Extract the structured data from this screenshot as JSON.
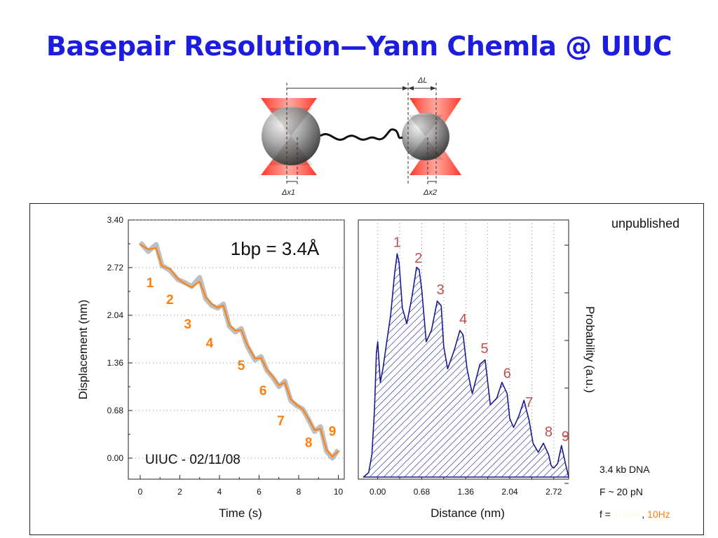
{
  "slide": {
    "title": "Basepair Resolution—Yann Chemla @ UIUC"
  },
  "diagram": {
    "delta_L": "ΔL",
    "delta_x1": "Δx1",
    "delta_x2": "Δx2"
  },
  "annotations": {
    "unpublished": "unpublished",
    "dna_length": "3.4 kb DNA",
    "force": "F ~ 20 pN",
    "freq_prefix": "f = ",
    "freq_100": "100Hz",
    "freq_sep": ", ",
    "freq_10": "10Hz"
  },
  "colors": {
    "title": "#1d1de0",
    "raw_trace": "#b8b8b8",
    "filtered_trace": "#ff7f0e",
    "step_labels_left": "#ff7f0e",
    "histogram": "#1a1a8c",
    "step_labels_right": "#c0504d"
  },
  "chart_data": [
    {
      "type": "line",
      "xlabel": "Time (s)",
      "ylabel": "Displacement (nm)",
      "xlim": [
        -0.6,
        10.3
      ],
      "ylim": [
        -0.3,
        3.4
      ],
      "xticks": [
        "0",
        "2",
        "4",
        "6",
        "8",
        "10"
      ],
      "yticks": [
        "0.00",
        "0.68",
        "1.36",
        "2.04",
        "2.72",
        "3.40"
      ],
      "grid": "dotted horizontal",
      "inset_text": "1bp = 3.4Å",
      "footer_text": "UIUC - 02/11/08",
      "series": [
        {
          "name": "100Hz",
          "x": [
            0,
            0.4,
            0.8,
            1.1,
            1.5,
            1.9,
            2.3,
            2.6,
            3.0,
            3.3,
            3.6,
            3.9,
            4.2,
            4.5,
            4.8,
            5.1,
            5.4,
            5.8,
            6.1,
            6.4,
            6.7,
            7.0,
            7.3,
            7.6,
            7.9,
            8.2,
            8.5,
            8.8,
            9.1,
            9.4,
            9.7,
            10.0
          ],
          "y": [
            3.08,
            2.95,
            3.05,
            2.75,
            2.68,
            2.55,
            2.5,
            2.45,
            2.58,
            2.28,
            2.18,
            2.14,
            2.2,
            1.88,
            1.8,
            1.85,
            1.6,
            1.4,
            1.45,
            1.25,
            1.15,
            1.02,
            1.1,
            0.82,
            0.75,
            0.7,
            0.55,
            0.38,
            0.45,
            0.1,
            0.0,
            0.12
          ]
        },
        {
          "name": "10Hz",
          "x": [
            0,
            0.4,
            0.8,
            1.1,
            1.5,
            1.9,
            2.3,
            2.6,
            3.0,
            3.3,
            3.6,
            3.9,
            4.2,
            4.5,
            4.8,
            5.1,
            5.4,
            5.8,
            6.1,
            6.4,
            6.7,
            7.0,
            7.3,
            7.6,
            7.9,
            8.2,
            8.5,
            8.8,
            9.1,
            9.4,
            9.7,
            10.0
          ],
          "y": [
            3.05,
            2.98,
            3.0,
            2.74,
            2.7,
            2.56,
            2.48,
            2.44,
            2.52,
            2.3,
            2.2,
            2.15,
            2.18,
            1.9,
            1.82,
            1.83,
            1.62,
            1.42,
            1.43,
            1.26,
            1.16,
            1.04,
            1.08,
            0.84,
            0.76,
            0.7,
            0.56,
            0.4,
            0.42,
            0.12,
            0.02,
            0.1
          ]
        }
      ],
      "step_labels": [
        {
          "label": "1",
          "x": 0.5,
          "y": 2.44
        },
        {
          "label": "2",
          "x": 1.5,
          "y": 2.2
        },
        {
          "label": "3",
          "x": 2.4,
          "y": 1.85
        },
        {
          "label": "4",
          "x": 3.5,
          "y": 1.58
        },
        {
          "label": "5",
          "x": 5.1,
          "y": 1.26
        },
        {
          "label": "6",
          "x": 6.2,
          "y": 0.9
        },
        {
          "label": "7",
          "x": 7.1,
          "y": 0.47
        },
        {
          "label": "8",
          "x": 8.5,
          "y": 0.16
        },
        {
          "label": "9",
          "x": 9.7,
          "y": 0.32
        }
      ]
    },
    {
      "type": "area",
      "fill": "hatched",
      "xlabel": "Distance (nm)",
      "ylabel": "Probability (a.u.)",
      "xlim": [
        -0.3,
        2.95
      ],
      "ylim": [
        0,
        1
      ],
      "xticks": [
        "0.00",
        "0.68",
        "1.36",
        "2.04",
        "2.72"
      ],
      "grid": "dotted vertical",
      "x": [
        -0.22,
        -0.14,
        -0.09,
        -0.05,
        -0.02,
        0.0,
        0.04,
        0.08,
        0.14,
        0.2,
        0.26,
        0.3,
        0.33,
        0.38,
        0.45,
        0.53,
        0.6,
        0.64,
        0.68,
        0.75,
        0.83,
        0.92,
        0.98,
        1.02,
        1.08,
        1.18,
        1.27,
        1.32,
        1.38,
        1.46,
        1.58,
        1.66,
        1.7,
        1.74,
        1.84,
        1.92,
        2.0,
        2.04,
        2.1,
        2.18,
        2.26,
        2.34,
        2.4,
        2.48,
        2.56,
        2.64,
        2.68,
        2.72,
        2.78,
        2.84,
        2.9,
        2.95
      ],
      "y": [
        0.0,
        0.02,
        0.1,
        0.3,
        0.55,
        0.6,
        0.42,
        0.48,
        0.6,
        0.72,
        0.9,
        0.99,
        0.95,
        0.75,
        0.68,
        0.8,
        0.93,
        0.92,
        0.83,
        0.6,
        0.65,
        0.78,
        0.76,
        0.58,
        0.48,
        0.56,
        0.65,
        0.63,
        0.48,
        0.37,
        0.5,
        0.52,
        0.42,
        0.32,
        0.35,
        0.42,
        0.37,
        0.26,
        0.22,
        0.27,
        0.34,
        0.25,
        0.15,
        0.11,
        0.15,
        0.1,
        0.05,
        0.04,
        0.06,
        0.14,
        0.06,
        0.0
      ],
      "peak_labels": [
        {
          "label": "1",
          "x": 0.3,
          "y": 1.02
        },
        {
          "label": "2",
          "x": 0.63,
          "y": 0.95
        },
        {
          "label": "3",
          "x": 0.97,
          "y": 0.81
        },
        {
          "label": "4",
          "x": 1.32,
          "y": 0.68
        },
        {
          "label": "5",
          "x": 1.65,
          "y": 0.55
        },
        {
          "label": "6",
          "x": 2.0,
          "y": 0.44
        },
        {
          "label": "7",
          "x": 2.34,
          "y": 0.31
        },
        {
          "label": "8",
          "x": 2.64,
          "y": 0.18
        },
        {
          "label": "9",
          "x": 2.9,
          "y": 0.16
        }
      ]
    }
  ]
}
